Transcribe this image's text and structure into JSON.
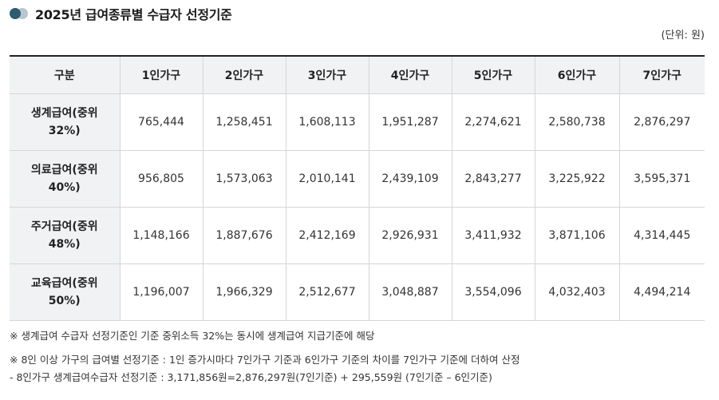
{
  "title": "2025년 급여종류별 수급자 선정기준",
  "unit_label": "(단위: 원)",
  "table": {
    "header_corner": "구분",
    "columns": [
      "1인가구",
      "2인가구",
      "3인가구",
      "4인가구",
      "5인가구",
      "6인가구",
      "7인가구"
    ],
    "rows": [
      {
        "label": "생계급여(중위 32%)",
        "values": [
          "765,444",
          "1,258,451",
          "1,608,113",
          "1,951,287",
          "2,274,621",
          "2,580,738",
          "2,876,297"
        ]
      },
      {
        "label": "의료급여(중위 40%)",
        "values": [
          "956,805",
          "1,573,063",
          "2,010,141",
          "2,439,109",
          "2,843,277",
          "3,225,922",
          "3,595,371"
        ]
      },
      {
        "label": "주거급여(중위 48%)",
        "values": [
          "1,148,166",
          "1,887,676",
          "2,412,169",
          "2,926,931",
          "3,411,932",
          "3,871,106",
          "4,314,445"
        ]
      },
      {
        "label": "교육급여(중위 50%)",
        "values": [
          "1,196,007",
          "1,966,329",
          "2,512,677",
          "3,048,887",
          "3,554,096",
          "4,032,403",
          "4,494,214"
        ]
      }
    ]
  },
  "notes": [
    "※ 생계급여 수급자 선정기준인 기준 중위소득 32%는 동시에 생계급여 지급기준에 해당",
    "※ 8인 이상 가구의 급여별 선정기준 : 1인 증가시마다 7인가구 기준과 6인가구 기준의 차이를 7인가구 기준에 더하여 산정",
    "- 8인가구 생계급여수급자 선정기준 : 3,171,856원=2,876,297원(7인기준) + 295,559원 (7인기준 – 6인기준)"
  ],
  "colors": {
    "header_bg": "#f1f2f4",
    "border": "#d6d6d6",
    "top_rule": "#222222",
    "dot_dark": "#2e5c6e",
    "dot_light": "#b7c7cf"
  }
}
